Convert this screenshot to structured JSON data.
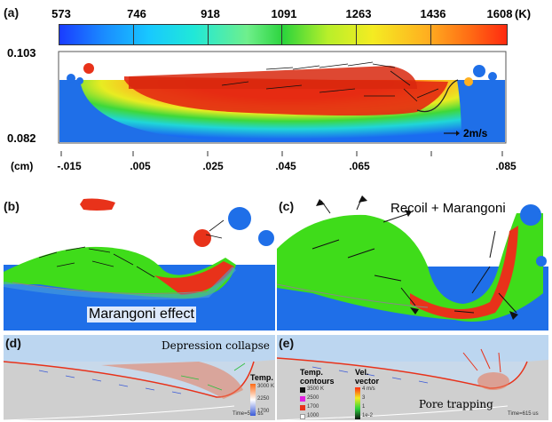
{
  "panel_a": {
    "label": "(a)",
    "colorbar_ticks": [
      "573",
      "746",
      "918",
      "1091",
      "1263",
      "1436",
      "1608"
    ],
    "colorbar_unit": "(K)",
    "y_top": "0.103",
    "y_bottom": "0.082",
    "x_unit": "(cm)",
    "x_ticks": [
      "-.015",
      ".005",
      ".025",
      ".045",
      ".065",
      ".085"
    ],
    "velocity_ref": "2m/s"
  },
  "panel_b": {
    "label": "(b)",
    "annotation": "Marangoni effect"
  },
  "panel_c": {
    "label": "(c)",
    "annotation": "Recoil + Marangoni"
  },
  "panel_d": {
    "label": "(d)",
    "annotation": "Depression collapse",
    "time": "Time=593 us"
  },
  "panel_e": {
    "label": "(e)",
    "annotation": "Pore trapping",
    "time": "Time=615 us"
  },
  "legend_e": {
    "temp_title": "Temp.",
    "temp_values": [
      "3000 K",
      "2250",
      "1700"
    ],
    "contours_title": "Temp. contours",
    "contour_values": [
      "3500 K",
      "2500",
      "1700",
      "1000"
    ],
    "vel_title": "Vel. vector",
    "vel_values": [
      "4 m/s",
      "3",
      "1",
      "1e-2"
    ]
  },
  "colors": {
    "substrate_blue": "#1f6fe8",
    "molten_green": "#3fdc1a",
    "hot_red": "#e8321a",
    "sky_grey": "#c8d9ea"
  }
}
